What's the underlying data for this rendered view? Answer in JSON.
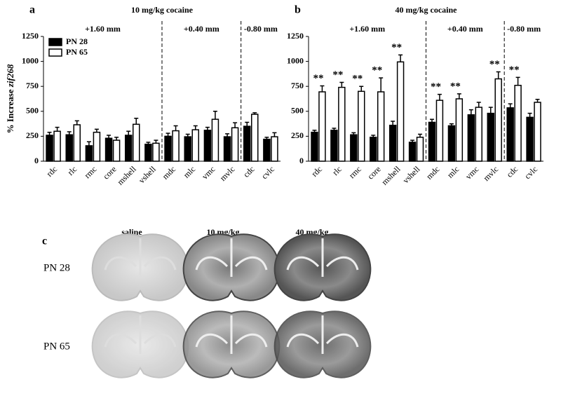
{
  "chart_data": [
    {
      "type": "bar",
      "panel": "a",
      "title": "10 mg/kg cocaine",
      "ylabel": [
        "% Increase ",
        "zif268"
      ],
      "categories": [
        "rdc",
        "rlc",
        "rmc",
        "core",
        "mshell",
        "vshell",
        "mdc",
        "mlc",
        "vmc",
        "mvlc",
        "cdc",
        "cvlc"
      ],
      "sections": [
        {
          "label": "+1.60 mm",
          "span": 6
        },
        {
          "label": "+0.40 mm",
          "span": 4
        },
        {
          "label": "-0.80 mm",
          "span": 2
        }
      ],
      "series": [
        {
          "name": "PN 28",
          "color": "#000000",
          "values": [
            260,
            265,
            155,
            230,
            260,
            170,
            250,
            245,
            310,
            245,
            350,
            220
          ],
          "errors": [
            30,
            30,
            40,
            30,
            40,
            20,
            30,
            25,
            30,
            30,
            40,
            20
          ]
        },
        {
          "name": "PN 65",
          "color": "#ffffff",
          "values": [
            300,
            365,
            290,
            210,
            370,
            180,
            305,
            315,
            420,
            335,
            470,
            245
          ],
          "errors": [
            40,
            40,
            30,
            30,
            60,
            30,
            50,
            40,
            80,
            50,
            15,
            40
          ]
        }
      ],
      "ylim": [
        0,
        1250
      ],
      "yticks": [
        0,
        250,
        500,
        750,
        1000,
        1250
      ],
      "legend": "top-left"
    },
    {
      "type": "bar",
      "panel": "b",
      "title": "40 mg/kg cocaine",
      "categories": [
        "rdc",
        "rlc",
        "rmc",
        "core",
        "mshell",
        "vshell",
        "mdc",
        "mlc",
        "vmc",
        "mvlc",
        "cdc",
        "cvlc"
      ],
      "sections": [
        {
          "label": "+1.60 mm",
          "span": 6
        },
        {
          "label": "+0.40 mm",
          "span": 4
        },
        {
          "label": "-0.80 mm",
          "span": 2
        }
      ],
      "series": [
        {
          "name": "PN 28",
          "color": "#000000",
          "values": [
            290,
            310,
            265,
            240,
            360,
            190,
            390,
            355,
            465,
            480,
            535,
            440
          ],
          "errors": [
            20,
            20,
            20,
            20,
            40,
            20,
            30,
            20,
            50,
            60,
            40,
            40
          ]
        },
        {
          "name": "PN 65",
          "color": "#ffffff",
          "values": [
            695,
            740,
            700,
            695,
            995,
            240,
            610,
            625,
            540,
            825,
            760,
            590
          ],
          "errors": [
            60,
            50,
            50,
            140,
            70,
            30,
            60,
            50,
            50,
            70,
            80,
            30
          ]
        }
      ],
      "significance": [
        "**",
        "**",
        "**",
        "**",
        "**",
        null,
        "**",
        "**",
        null,
        "**",
        "**",
        null
      ],
      "ylim": [
        0,
        1250
      ],
      "yticks": [
        0,
        250,
        500,
        750,
        1000,
        1250
      ],
      "legend": null
    }
  ],
  "panel_c": {
    "letter": "c",
    "columns": [
      "saline",
      "10 mg/kg",
      "40 mg/kg"
    ],
    "rows": [
      "PN 28",
      "PN 65"
    ]
  }
}
